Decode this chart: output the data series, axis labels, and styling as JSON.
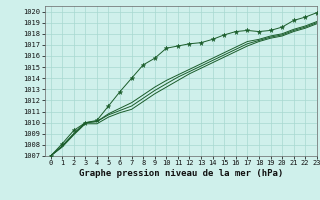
{
  "bg_color": "#cff0eb",
  "grid_color": "#a8d8d0",
  "line_color": "#1a5c2a",
  "title": "Graphe pression niveau de la mer (hPa)",
  "xlim": [
    -0.5,
    23
  ],
  "ylim": [
    1007,
    1020.5
  ],
  "xticks": [
    0,
    1,
    2,
    3,
    4,
    5,
    6,
    7,
    8,
    9,
    10,
    11,
    12,
    13,
    14,
    15,
    16,
    17,
    18,
    19,
    20,
    21,
    22,
    23
  ],
  "yticks": [
    1007,
    1008,
    1009,
    1010,
    1011,
    1012,
    1013,
    1014,
    1015,
    1016,
    1017,
    1018,
    1019,
    1020
  ],
  "series": [
    [
      1007.0,
      1008.1,
      1009.3,
      1010.0,
      1010.2,
      1011.5,
      1012.8,
      1014.0,
      1015.2,
      1015.8,
      1016.7,
      1016.9,
      1017.1,
      1017.2,
      1017.5,
      1017.9,
      1018.2,
      1018.3,
      1018.2,
      1018.3,
      1018.6,
      1019.2,
      1019.5,
      1019.9
    ],
    [
      1007.0,
      1007.9,
      1009.0,
      1010.0,
      1010.1,
      1010.8,
      1011.3,
      1011.8,
      1012.5,
      1013.2,
      1013.8,
      1014.3,
      1014.8,
      1015.3,
      1015.8,
      1016.3,
      1016.8,
      1017.3,
      1017.5,
      1017.8,
      1018.0,
      1018.4,
      1018.7,
      1019.1
    ],
    [
      1007.0,
      1007.9,
      1009.0,
      1010.0,
      1010.1,
      1010.7,
      1011.1,
      1011.5,
      1012.2,
      1012.9,
      1013.5,
      1014.1,
      1014.6,
      1015.1,
      1015.6,
      1016.1,
      1016.6,
      1017.1,
      1017.4,
      1017.7,
      1017.9,
      1018.3,
      1018.6,
      1019.0
    ],
    [
      1007.0,
      1007.8,
      1008.9,
      1009.9,
      1009.9,
      1010.5,
      1010.9,
      1011.2,
      1011.9,
      1012.6,
      1013.2,
      1013.8,
      1014.4,
      1014.9,
      1015.4,
      1015.9,
      1016.4,
      1016.9,
      1017.3,
      1017.6,
      1017.8,
      1018.2,
      1018.5,
      1018.9
    ]
  ],
  "marker_series_idx": 0,
  "title_fontsize": 6.5,
  "tick_fontsize": 5.0
}
